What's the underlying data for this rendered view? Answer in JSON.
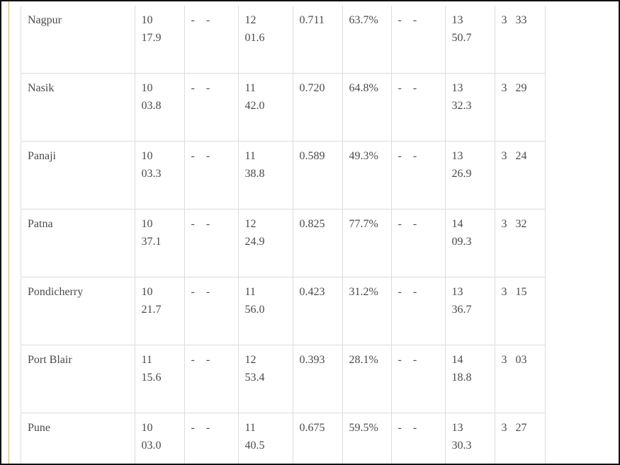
{
  "rows": [
    {
      "city": "Nagpur",
      "begin_h": "10",
      "begin_m": "17.9",
      "dash1": "- -",
      "max_h": "12",
      "max_m": "01.6",
      "magnitude": "0.711",
      "obscuration": "63.7%",
      "dash2": "- -",
      "end_h": "13",
      "end_m": "50.7",
      "duration": "3   33"
    },
    {
      "city": "Nasik",
      "begin_h": "10",
      "begin_m": "03.8",
      "dash1": "- -",
      "max_h": "11",
      "max_m": "42.0",
      "magnitude": "0.720",
      "obscuration": "64.8%",
      "dash2": "- -",
      "end_h": "13",
      "end_m": "32.3",
      "duration": "3   29"
    },
    {
      "city": "Panaji",
      "begin_h": "10",
      "begin_m": "03.3",
      "dash1": "- -",
      "max_h": "11",
      "max_m": "38.8",
      "magnitude": "0.589",
      "obscuration": "49.3%",
      "dash2": "- -",
      "end_h": "13",
      "end_m": "26.9",
      "duration": "3   24"
    },
    {
      "city": "Patna",
      "begin_h": "10",
      "begin_m": "37.1",
      "dash1": "- -",
      "max_h": "12",
      "max_m": "24.9",
      "magnitude": "0.825",
      "obscuration": "77.7%",
      "dash2": "- -",
      "end_h": "14",
      "end_m": "09.3",
      "duration": "3   32"
    },
    {
      "city": "Pondicherry",
      "begin_h": "10",
      "begin_m": "21.7",
      "dash1": "- -",
      "max_h": "11",
      "max_m": "56.0",
      "magnitude": "0.423",
      "obscuration": "31.2%",
      "dash2": "- -",
      "end_h": "13",
      "end_m": "36.7",
      "duration": "3   15"
    },
    {
      "city": "Port Blair",
      "begin_h": "11",
      "begin_m": "15.6",
      "dash1": "- -",
      "max_h": "12",
      "max_m": "53.4",
      "magnitude": "0.393",
      "obscuration": "28.1%",
      "dash2": "- -",
      "end_h": "14",
      "end_m": "18.8",
      "duration": "3   03"
    },
    {
      "city": "Pune",
      "begin_h": "10",
      "begin_m": "03.0",
      "dash1": "- -",
      "max_h": "11",
      "max_m": "40.5",
      "magnitude": "0.675",
      "obscuration": "59.5%",
      "dash2": "- -",
      "end_h": "13",
      "end_m": "30.3",
      "duration": "3   27"
    }
  ]
}
